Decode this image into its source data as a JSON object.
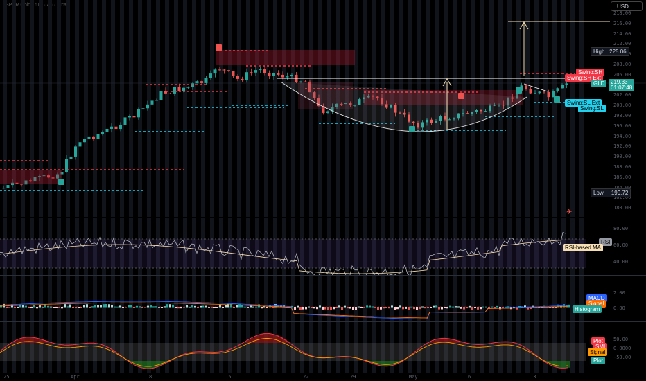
{
  "header": {
    "symbol_line": "SPDR Gold Trust · 4h · Arca"
  },
  "currency": "USD",
  "price_axis": {
    "ticks": [
      "218.00",
      "216.00",
      "214.00",
      "212.00",
      "210.00",
      "208.00",
      "206.00",
      "204.00",
      "202.00",
      "200.00",
      "198.00",
      "196.00",
      "194.00",
      "192.00",
      "190.00",
      "188.00",
      "186.00",
      "184.00",
      "182.00",
      "180.00"
    ],
    "high_label": "High",
    "high_value": "225.06",
    "low_label": "Low",
    "low_value": "199.72",
    "last_symbol": "GLD",
    "last_value": "219.33",
    "countdown": "01:07:48",
    "swing_sh": "Swing:SH",
    "swing_sh_ext": "Swing:SH Ext",
    "swing_sl_ext": "Swing:SL Ext",
    "swing_sl": "Swing:SL"
  },
  "rsi": {
    "ticks": [
      "80.00",
      "60.00",
      "40.00"
    ],
    "label_rsi": "RSI",
    "label_ma": "RSI-based MA"
  },
  "macd": {
    "ticks": [
      "2.00",
      "0.00"
    ],
    "label_macd": "MACD",
    "label_signal": "Signal",
    "label_hist": "Histogram"
  },
  "smi": {
    "ticks": [
      "50.00",
      "0.0000",
      "-50.00"
    ],
    "label_plot": "Plot",
    "label_smi": "SMI",
    "label_signal": "Signal",
    "label_plot2": "Plot"
  },
  "time_axis": {
    "labels": [
      "25",
      "Apr",
      "8",
      "15",
      "22",
      "29",
      "May",
      "6",
      "13"
    ]
  },
  "colors": {
    "up": "#26a69a",
    "down": "#ef5350",
    "swing_red": "#f23645",
    "swing_teal": "#22d1ee",
    "white_line": "#ffffff",
    "cream": "#f5deb3",
    "bg": "#000000"
  },
  "icons": {
    "scroll": "rocket-icon"
  }
}
